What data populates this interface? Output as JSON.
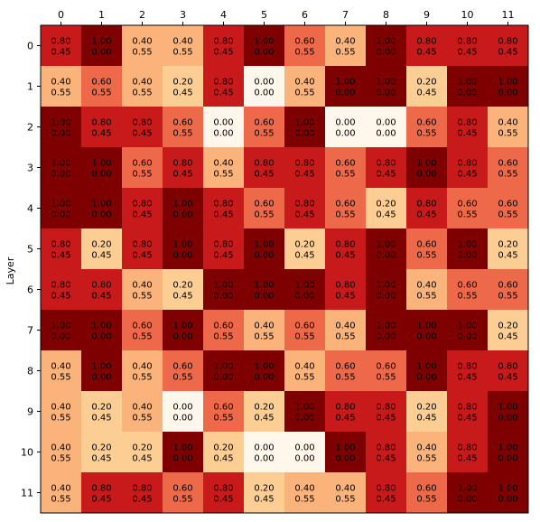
{
  "chart_data": {
    "type": "heatmap",
    "title": "",
    "xlabel": "",
    "ylabel": "Layer",
    "x_tick_position": "top",
    "x_categories": [
      "0",
      "1",
      "2",
      "3",
      "4",
      "5",
      "6",
      "7",
      "8",
      "9",
      "10",
      "11"
    ],
    "y_categories": [
      "0",
      "1",
      "2",
      "3",
      "4",
      "5",
      "6",
      "7",
      "8",
      "9",
      "10",
      "11"
    ],
    "colormap": "OrRd",
    "value_range": [
      0,
      1
    ],
    "grid": false,
    "values": [
      [
        0.8,
        1.0,
        0.4,
        0.4,
        0.8,
        1.0,
        0.6,
        0.4,
        1.0,
        0.8,
        0.8,
        0.8
      ],
      [
        0.4,
        0.6,
        0.4,
        0.2,
        0.8,
        0.0,
        0.4,
        1.0,
        1.0,
        0.2,
        1.0,
        1.0
      ],
      [
        1.0,
        0.8,
        0.8,
        0.6,
        0.0,
        0.6,
        1.0,
        0.0,
        0.0,
        0.6,
        0.8,
        0.4
      ],
      [
        1.0,
        1.0,
        0.6,
        0.8,
        0.4,
        0.8,
        0.8,
        0.6,
        0.8,
        1.0,
        0.8,
        0.6
      ],
      [
        1.0,
        1.0,
        0.8,
        1.0,
        0.8,
        0.6,
        0.8,
        0.6,
        0.2,
        0.8,
        0.6,
        0.6
      ],
      [
        0.8,
        0.2,
        0.8,
        1.0,
        0.8,
        1.0,
        0.2,
        0.8,
        1.0,
        0.6,
        1.0,
        0.2
      ],
      [
        0.8,
        0.8,
        0.4,
        0.2,
        1.0,
        1.0,
        1.0,
        0.8,
        1.0,
        0.4,
        0.6,
        0.6
      ],
      [
        1.0,
        1.0,
        0.6,
        1.0,
        0.6,
        0.4,
        0.6,
        0.4,
        1.0,
        1.0,
        1.0,
        0.2
      ],
      [
        0.4,
        1.0,
        0.4,
        0.6,
        1.0,
        1.0,
        0.4,
        0.6,
        0.6,
        1.0,
        0.8,
        0.8
      ],
      [
        0.4,
        0.2,
        0.4,
        0.0,
        0.6,
        0.2,
        1.0,
        0.8,
        0.8,
        0.2,
        0.8,
        1.0
      ],
      [
        0.4,
        0.2,
        0.2,
        1.0,
        0.2,
        0.0,
        0.0,
        1.0,
        0.8,
        0.4,
        0.8,
        1.0
      ],
      [
        0.4,
        0.8,
        0.8,
        0.6,
        0.8,
        0.2,
        0.4,
        0.4,
        0.8,
        0.6,
        1.0,
        1.0
      ]
    ],
    "secondary_values": [
      [
        0.45,
        0.0,
        0.55,
        0.55,
        0.45,
        0.0,
        0.55,
        0.55,
        0.0,
        0.45,
        0.45,
        0.45
      ],
      [
        0.55,
        0.55,
        0.55,
        0.45,
        0.45,
        0.0,
        0.55,
        0.0,
        0.0,
        0.45,
        0.0,
        0.0
      ],
      [
        0.0,
        0.45,
        0.45,
        0.55,
        0.0,
        0.55,
        0.0,
        0.0,
        0.0,
        0.55,
        0.45,
        0.55
      ],
      [
        0.0,
        0.0,
        0.55,
        0.45,
        0.55,
        0.45,
        0.45,
        0.55,
        0.45,
        0.0,
        0.45,
        0.55
      ],
      [
        0.0,
        0.0,
        0.45,
        0.0,
        0.45,
        0.55,
        0.45,
        0.55,
        0.45,
        0.45,
        0.55,
        0.55
      ],
      [
        0.45,
        0.45,
        0.45,
        0.0,
        0.45,
        0.0,
        0.45,
        0.45,
        0.0,
        0.55,
        0.0,
        0.45
      ],
      [
        0.45,
        0.45,
        0.55,
        0.45,
        0.0,
        0.0,
        0.0,
        0.45,
        0.0,
        0.55,
        0.55,
        0.55
      ],
      [
        0.0,
        0.0,
        0.55,
        0.0,
        0.55,
        0.55,
        0.55,
        0.55,
        0.0,
        0.0,
        0.0,
        0.45
      ],
      [
        0.55,
        0.0,
        0.55,
        0.55,
        0.0,
        0.0,
        0.55,
        0.55,
        0.55,
        0.0,
        0.45,
        0.45
      ],
      [
        0.55,
        0.45,
        0.55,
        0.0,
        0.55,
        0.45,
        0.0,
        0.45,
        0.45,
        0.45,
        0.45,
        0.0
      ],
      [
        0.55,
        0.45,
        0.45,
        0.0,
        0.45,
        0.0,
        0.0,
        0.0,
        0.45,
        0.55,
        0.45,
        0.0
      ],
      [
        0.55,
        0.45,
        0.45,
        0.55,
        0.45,
        0.45,
        0.55,
        0.55,
        0.45,
        0.55,
        0.0,
        0.0
      ]
    ],
    "value_format_decimals": 2
  }
}
